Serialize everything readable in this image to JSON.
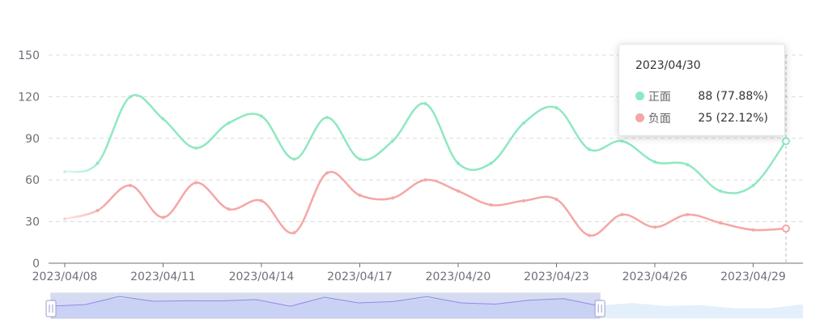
{
  "chart_data": {
    "type": "line",
    "smooth": true,
    "x": [
      "2023/04/08",
      "2023/04/09",
      "2023/04/10",
      "2023/04/11",
      "2023/04/12",
      "2023/04/13",
      "2023/04/14",
      "2023/04/15",
      "2023/04/16",
      "2023/04/17",
      "2023/04/18",
      "2023/04/19",
      "2023/04/20",
      "2023/04/21",
      "2023/04/22",
      "2023/04/23",
      "2023/04/24",
      "2023/04/25",
      "2023/04/26",
      "2023/04/27",
      "2023/04/28",
      "2023/04/29",
      "2023/04/30"
    ],
    "x_tick_labels": [
      "2023/04/08",
      "2023/04/11",
      "2023/04/14",
      "2023/04/17",
      "2023/04/20",
      "2023/04/23",
      "2023/04/26",
      "2023/04/29"
    ],
    "series": [
      {
        "name": "正面",
        "color": "#8ee8c0",
        "values": [
          66,
          72,
          120,
          104,
          83,
          101,
          106,
          75,
          105,
          75,
          88,
          115,
          72,
          72,
          101,
          112,
          82,
          88,
          73,
          71,
          52,
          56,
          88
        ]
      },
      {
        "name": "负面",
        "color": "#f5a6a6",
        "values": [
          32,
          38,
          56,
          33,
          58,
          39,
          45,
          22,
          65,
          49,
          47,
          60,
          52,
          42,
          45,
          46,
          20,
          35,
          26,
          35,
          29,
          24,
          25
        ]
      }
    ],
    "y_ticks": [
      0,
      30,
      60,
      90,
      120,
      150
    ],
    "ylim": [
      0,
      150
    ],
    "grid": true,
    "grid_style": "dashed",
    "data_zoom": {
      "start_fraction": 0.0,
      "end_fraction": 0.73
    }
  },
  "tooltip": {
    "title": "2023/04/30",
    "rows": [
      {
        "name": "正面",
        "value": "88 (77.88%)",
        "color": "#8ee8c0"
      },
      {
        "name": "负面",
        "value": "25 (22.12%)",
        "color": "#f5a6a6"
      }
    ]
  }
}
